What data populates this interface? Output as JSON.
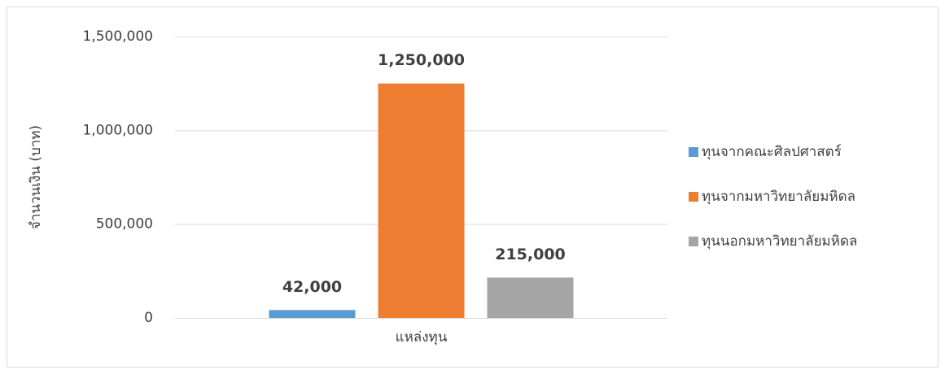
{
  "chart_data": {
    "type": "bar",
    "categories": [
      "แหล่งทุน"
    ],
    "y_label": "จำนวนเงิน (บาท)",
    "series": [
      {
        "name": "ทุนจากคณะศิลปศาสตร์",
        "color": "#5b9bd5",
        "values": [
          42000
        ],
        "value_labels": [
          "42,000"
        ]
      },
      {
        "name": "ทุนจากมหาวิทยาลัยมหิดล",
        "color": "#ed7d31",
        "values": [
          1250000
        ],
        "value_labels": [
          "1,250,000"
        ]
      },
      {
        "name": "ทุนนอกมหาวิทยาลัยมหิดล",
        "color": "#a5a5a5",
        "values": [
          215000
        ],
        "value_labels": [
          "215,000"
        ]
      }
    ],
    "ylim": [
      0,
      1500000
    ],
    "yticks": [
      0,
      {
        "value": 500000,
        "label": "500,000"
      },
      {
        "value": 1000000,
        "label": "1,000,000"
      },
      {
        "value": 1500000,
        "label": "1,500,000"
      }
    ],
    "grid": true,
    "legend": "right"
  }
}
